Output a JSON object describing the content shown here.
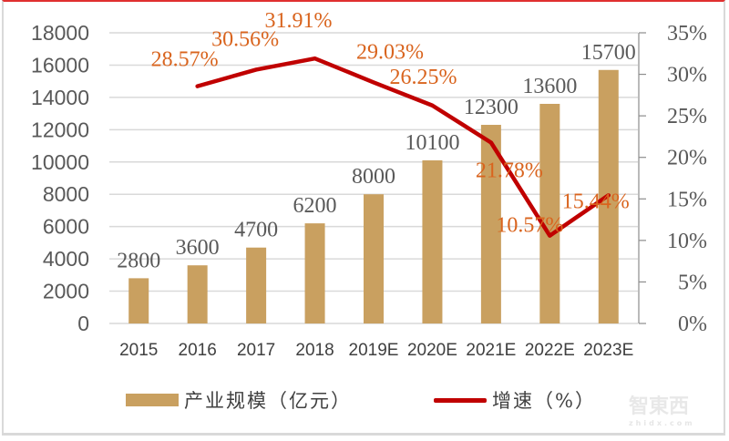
{
  "chart_data": {
    "type": "bar+line",
    "title": "",
    "categories": [
      "2015",
      "2016",
      "2017",
      "2018",
      "2019E",
      "2020E",
      "2021E",
      "2022E",
      "2023E"
    ],
    "series": [
      {
        "name": "产业规模（亿元）",
        "type": "bar",
        "axis": "left",
        "color": "#c9a060",
        "values": [
          2800,
          3600,
          4700,
          6200,
          8000,
          10100,
          12300,
          13600,
          15700
        ],
        "labels": [
          "2800",
          "3600",
          "4700",
          "6200",
          "8000",
          "10100",
          "12300",
          "13600",
          "15700"
        ]
      },
      {
        "name": "增速（%）",
        "type": "line",
        "axis": "right",
        "color": "#c00000",
        "values": [
          null,
          28.57,
          30.56,
          31.91,
          29.03,
          26.25,
          21.78,
          10.57,
          15.44
        ],
        "labels": [
          "",
          "28.57%",
          "30.56%",
          "31.91%",
          "29.03%",
          "26.25%",
          "21.78%",
          "10.57%",
          "15.44%"
        ]
      }
    ],
    "left_axis": {
      "ylim": [
        0,
        18000
      ],
      "ticks": [
        "0",
        "2000",
        "4000",
        "6000",
        "8000",
        "10000",
        "12000",
        "14000",
        "16000",
        "18000"
      ]
    },
    "right_axis": {
      "ylim": [
        0,
        35
      ],
      "ticks": [
        "0%",
        "5%",
        "10%",
        "15%",
        "20%",
        "25%",
        "30%",
        "35%"
      ]
    },
    "grid": true,
    "legend_position": "bottom"
  },
  "legend": {
    "bar_label": "产业规模（亿元）",
    "line_label": "增速（%）"
  },
  "watermark": {
    "main": "智東西",
    "sub": "zhidx.com"
  }
}
